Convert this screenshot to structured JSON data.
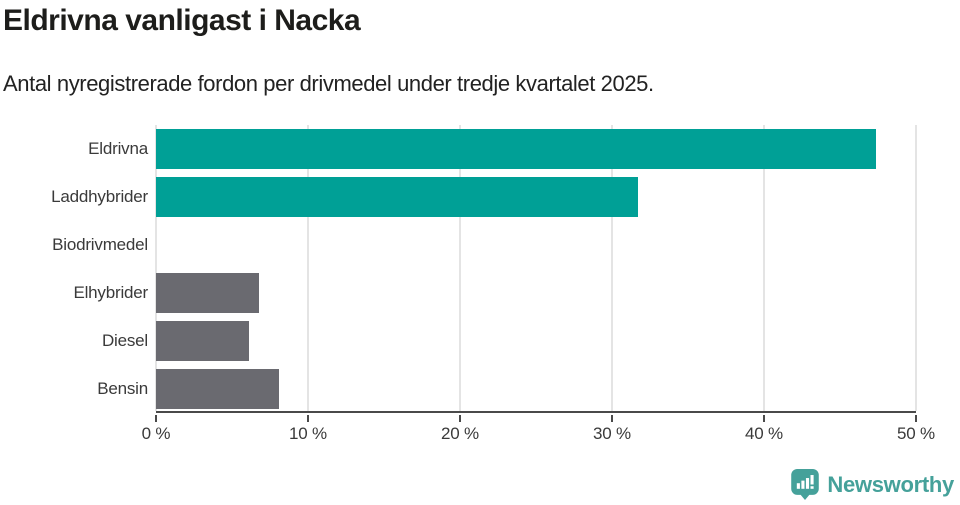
{
  "header": {
    "title": "Eldrivna vanligast i Nacka",
    "subtitle": "Antal nyregistrerade fordon per drivmedel under tredje kvartalet 2025."
  },
  "chart_data": {
    "type": "bar",
    "orientation": "horizontal",
    "title": "Eldrivna vanligast i Nacka",
    "subtitle": "Antal nyregistrerade fordon per drivmedel under tredje kvartalet 2025.",
    "categories": [
      "Eldrivna",
      "Laddhybrider",
      "Biodrivmedel",
      "Elhybrider",
      "Diesel",
      "Bensin"
    ],
    "values": [
      47.4,
      31.7,
      0,
      6.8,
      6.1,
      8.1
    ],
    "unit": "%",
    "xlim": [
      0,
      50
    ],
    "xticks": [
      0,
      10,
      20,
      30,
      40,
      50
    ],
    "xtick_labels": [
      "0 %",
      "10 %",
      "20 %",
      "30 %",
      "40 %",
      "50 %"
    ],
    "bar_colors": [
      "#00a096",
      "#00a096",
      "#6a6a70",
      "#6a6a70",
      "#6a6a70",
      "#6a6a70"
    ],
    "grid": true,
    "legend": false
  },
  "branding": {
    "logo_text": "Newsworthy",
    "logo_icon": "newsworthy-chart-bubble-icon",
    "logo_color": "#45a19a"
  },
  "colors": {
    "bar_teal": "#00a096",
    "bar_gray": "#6a6a70",
    "axis": "#4a4a4a",
    "gridline": "#e4e4e4",
    "title_text": "#1d1d1b",
    "label_text": "#3a3a3a"
  }
}
